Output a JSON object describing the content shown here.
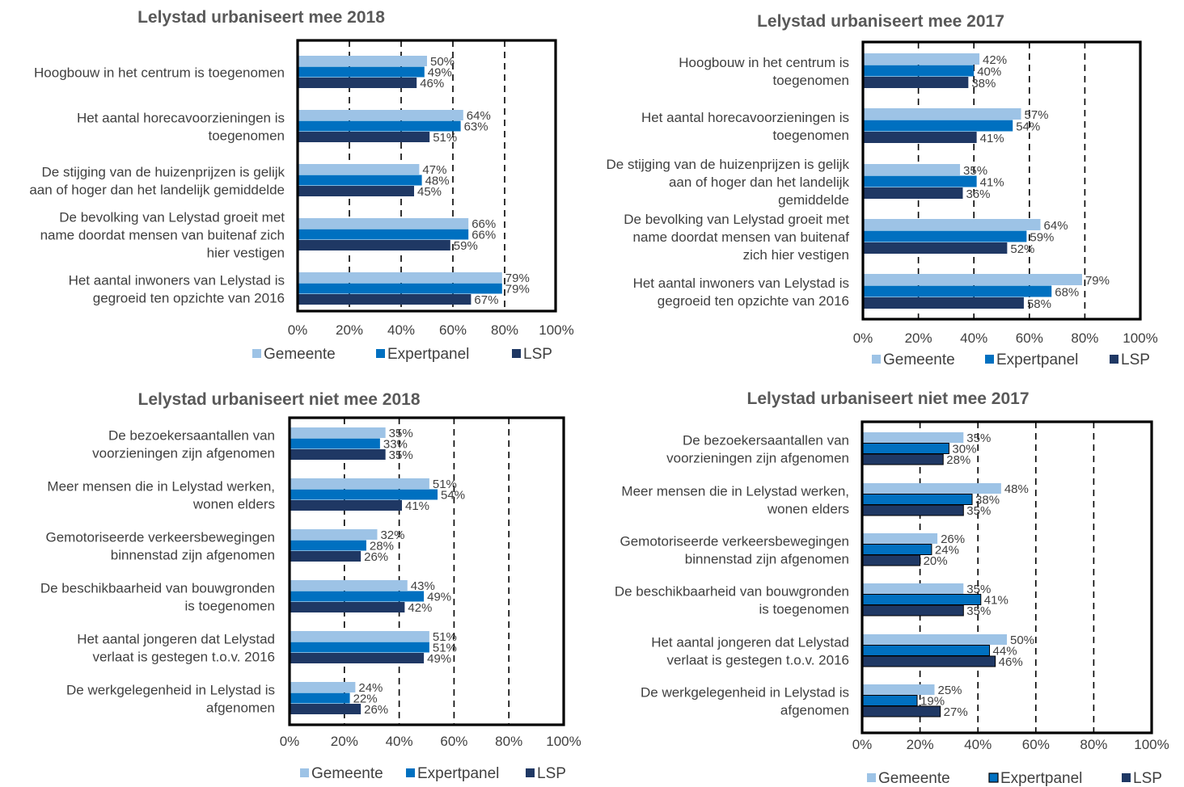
{
  "colors": {
    "gemeente": "#9dc3e6",
    "expertpanel": "#0070c0",
    "lsp": "#1f3864",
    "frame": "#000000",
    "text": "#404040",
    "title": "#595959"
  },
  "chart_data": [
    {
      "type": "bar",
      "title": "Lelystad urbaniseert mee 2018",
      "orientation": "horizontal",
      "xlim": [
        0,
        100
      ],
      "x_ticks": [
        "0%",
        "20%",
        "40%",
        "60%",
        "80%",
        "100%"
      ],
      "gridlines": "dashed vertical at 20%, 40%, 60%, 80%",
      "legend_position": "bottom",
      "categories": [
        [
          "Hoogbouw in het centrum is toegenomen"
        ],
        [
          "Het aantal horecavoorzieningen is",
          "toegenomen"
        ],
        [
          "De stijging van de huizenprijzen is gelijk",
          "aan of hoger dan het landelijk gemiddelde"
        ],
        [
          "De bevolking van Lelystad groeit met",
          "name doordat mensen van buitenaf zich",
          "hier vestigen"
        ],
        [
          "Het aantal inwoners van Lelystad is",
          "gegroeid ten opzichte van 2016"
        ]
      ],
      "series": [
        {
          "name": "Gemeente",
          "values": [
            50,
            64,
            47,
            66,
            79
          ],
          "labels": [
            "50%",
            "64%",
            "47%",
            "66%",
            "79%"
          ]
        },
        {
          "name": "Expertpanel",
          "values": [
            49,
            63,
            48,
            66,
            79
          ],
          "labels": [
            "49%",
            "63%",
            "48%",
            "66%",
            "79%"
          ]
        },
        {
          "name": "LSP",
          "values": [
            46,
            51,
            45,
            59,
            67
          ],
          "labels": [
            "46%",
            "51%",
            "45%",
            "59%",
            "67%"
          ]
        }
      ]
    },
    {
      "type": "bar",
      "title": "Lelystad urbaniseert mee 2017",
      "orientation": "horizontal",
      "xlim": [
        0,
        100
      ],
      "x_ticks": [
        "0%",
        "20%",
        "40%",
        "60%",
        "80%",
        "100%"
      ],
      "gridlines": "dashed vertical at 20%, 40%, 60%, 80%",
      "legend_position": "bottom",
      "categories": [
        [
          "Hoogbouw in het centrum is",
          "toegenomen"
        ],
        [
          "Het aantal horecavoorzieningen is",
          "toegenomen"
        ],
        [
          "De stijging van de huizenprijzen is gelijk",
          "aan of hoger dan het landelijk",
          "gemiddelde"
        ],
        [
          "De bevolking van Lelystad groeit met",
          "name doordat mensen van buitenaf",
          "zich hier vestigen"
        ],
        [
          "Het aantal inwoners van Lelystad is",
          "gegroeid ten opzichte van 2016"
        ]
      ],
      "series": [
        {
          "name": "Gemeente",
          "values": [
            42,
            57,
            35,
            64,
            79
          ],
          "labels": [
            "42%",
            "57%",
            "35%",
            "64%",
            "79%"
          ]
        },
        {
          "name": "Expertpanel",
          "values": [
            40,
            54,
            41,
            59,
            68
          ],
          "labels": [
            "40%",
            "54%",
            "41%",
            "59%",
            "68%"
          ]
        },
        {
          "name": "LSP",
          "values": [
            38,
            41,
            36,
            52,
            58
          ],
          "labels": [
            "38%",
            "41%",
            "36%",
            "52%",
            "58%"
          ]
        }
      ]
    },
    {
      "type": "bar",
      "title": "Lelystad urbaniseert niet mee 2018",
      "orientation": "horizontal",
      "xlim": [
        0,
        100
      ],
      "x_ticks": [
        "0%",
        "20%",
        "40%",
        "60%",
        "80%",
        "100%"
      ],
      "gridlines": "dashed vertical at 20%, 40%, 60%, 80%",
      "legend_position": "bottom",
      "categories": [
        [
          "De bezoekersaantallen van",
          "voorzieningen zijn afgenomen"
        ],
        [
          "Meer mensen die in Lelystad werken,",
          "wonen elders"
        ],
        [
          "Gemotoriseerde verkeersbewegingen",
          "binnenstad zijn afgenomen"
        ],
        [
          "De beschikbaarheid van bouwgronden",
          "is toegenomen"
        ],
        [
          "Het aantal jongeren dat Lelystad",
          "verlaat is gestegen t.o.v. 2016"
        ],
        [
          "De werkgelegenheid in Lelystad is",
          "afgenomen"
        ]
      ],
      "series": [
        {
          "name": "Gemeente",
          "values": [
            35,
            51,
            32,
            43,
            51,
            24
          ],
          "labels": [
            "35%",
            "51%",
            "32%",
            "43%",
            "51%",
            "24%"
          ]
        },
        {
          "name": "Expertpanel",
          "values": [
            33,
            54,
            28,
            49,
            51,
            22
          ],
          "labels": [
            "33%",
            "54%",
            "28%",
            "49%",
            "51%",
            "22%"
          ]
        },
        {
          "name": "LSP",
          "values": [
            35,
            41,
            26,
            42,
            49,
            26
          ],
          "labels": [
            "35%",
            "41%",
            "26%",
            "42%",
            "49%",
            "26%"
          ]
        }
      ]
    },
    {
      "type": "bar",
      "title": "Lelystad urbaniseert niet mee 2017",
      "orientation": "horizontal",
      "xlim": [
        0,
        100
      ],
      "x_ticks": [
        "0%",
        "20%",
        "40%",
        "60%",
        "80%",
        "100%"
      ],
      "gridlines": "dashed vertical at 20%, 40%, 60%, 80%",
      "legend_position": "bottom",
      "categories": [
        [
          "De bezoekersaantallen van",
          "voorzieningen zijn afgenomen"
        ],
        [
          "Meer mensen die in Lelystad werken,",
          "wonen elders"
        ],
        [
          "Gemotoriseerde verkeersbewegingen",
          "binnenstad zijn afgenomen"
        ],
        [
          "De beschikbaarheid van bouwgronden",
          "is toegenomen"
        ],
        [
          "Het aantal jongeren dat Lelystad",
          "verlaat is gestegen t.o.v. 2016"
        ],
        [
          "De werkgelegenheid in Lelystad is",
          "afgenomen"
        ]
      ],
      "series": [
        {
          "name": "Gemeente",
          "values": [
            35,
            48,
            26,
            35,
            50,
            25
          ],
          "labels": [
            "35%",
            "48%",
            "26%",
            "35%",
            "50%",
            "25%"
          ]
        },
        {
          "name": "Expertpanel",
          "values": [
            30,
            38,
            24,
            41,
            44,
            19
          ],
          "labels": [
            "30%",
            "38%",
            "24%",
            "41%",
            "44%",
            "19%"
          ]
        },
        {
          "name": "LSP",
          "values": [
            28,
            35,
            20,
            35,
            46,
            27
          ],
          "labels": [
            "28%",
            "35%",
            "20%",
            "35%",
            "46%",
            "27%"
          ]
        }
      ]
    }
  ]
}
